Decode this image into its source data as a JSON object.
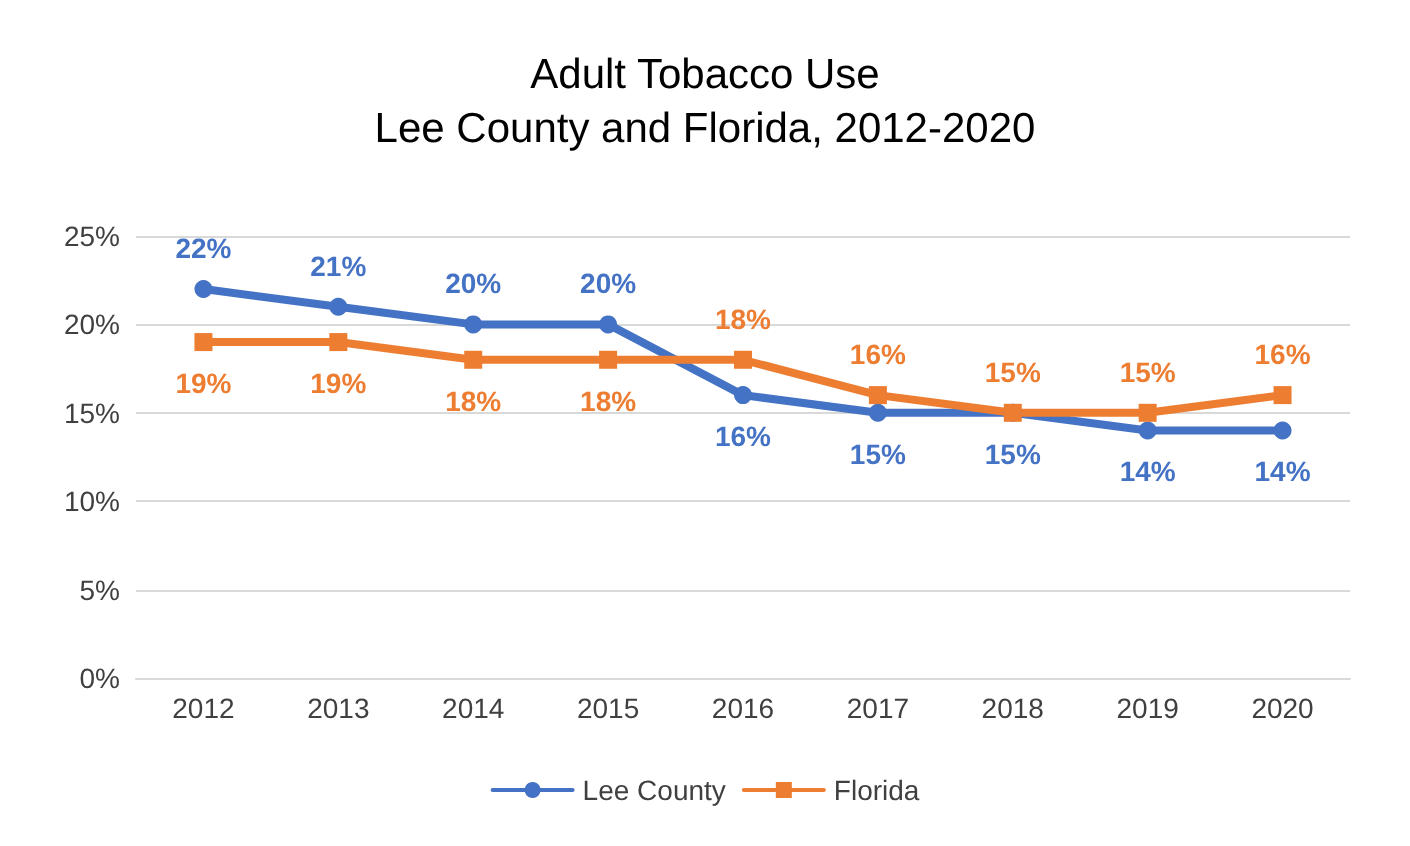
{
  "chart_data": {
    "type": "line",
    "title": "Adult Tobacco Use",
    "subtitle": "Lee County and Florida, 2012-2020",
    "categories": [
      "2012",
      "2013",
      "2014",
      "2015",
      "2016",
      "2017",
      "2018",
      "2019",
      "2020"
    ],
    "series": [
      {
        "name": "Lee County",
        "color": "#4472c4",
        "marker": "circle",
        "values": [
          22,
          21,
          20,
          20,
          16,
          15,
          15,
          14,
          14
        ],
        "value_labels": [
          "22%",
          "21%",
          "20%",
          "20%",
          "16%",
          "15%",
          "15%",
          "14%",
          "14%"
        ]
      },
      {
        "name": "Florida",
        "color": "#ed7d31",
        "marker": "square",
        "values": [
          19,
          19,
          18,
          18,
          18,
          16,
          15,
          15,
          16
        ],
        "value_labels": [
          "19%",
          "19%",
          "18%",
          "18%",
          "18%",
          "16%",
          "15%",
          "15%",
          "16%"
        ]
      }
    ],
    "ylim": [
      0,
      25
    ],
    "yticks": [
      {
        "value": 0,
        "label": "0%"
      },
      {
        "value": 5,
        "label": "5%"
      },
      {
        "value": 10,
        "label": "10%"
      },
      {
        "value": 15,
        "label": "15%"
      },
      {
        "value": 20,
        "label": "20%"
      },
      {
        "value": 25,
        "label": "25%"
      }
    ],
    "grid": "y",
    "legend": "bottom",
    "line_style": "solid"
  }
}
